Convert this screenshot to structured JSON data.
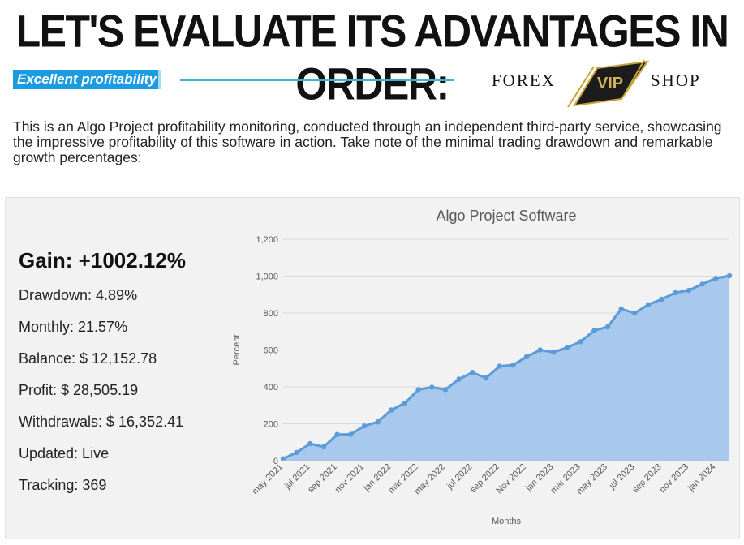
{
  "headline": "LET'S EVALUATE ITS ADVANTAGES IN ORDER:",
  "section_tag": "Excellent profitability",
  "logo": {
    "left": "FOREX",
    "center": "VIP",
    "right": "SHOP"
  },
  "intro": "This is an Algo Project profitability monitoring, conducted through an independent third-party service, showcasing the impressive profitability of this software in action. Take note of the minimal trading drawdown and remarkable growth percentages:",
  "stats": {
    "gain": "Gain: +1002.12%",
    "drawdown": "Drawdown: 4.89%",
    "monthly": "Monthly: 21.57%",
    "balance": "Balance: $ 12,152.78",
    "profit": "Profit: $ 28,505.19",
    "withdrawals": "Withdrawals: $ 16,352.41",
    "updated": "Updated: Live",
    "tracking": "Tracking: 369"
  },
  "colors": {
    "accent": "#1b9be0",
    "line": "#5b9bd8",
    "fill": "#a9c8ee",
    "gold": "#c9a43b"
  },
  "chart_data": {
    "type": "area",
    "title": "Algo Project Software",
    "xlabel": "Months",
    "ylabel": "Percent",
    "ylim": [
      0,
      1200
    ],
    "yticks": [
      "0",
      "200",
      "400",
      "600",
      "800",
      "1,000",
      "1,200"
    ],
    "grid": true,
    "x": [
      "may 2021",
      "jun 2021",
      "jul 2021",
      "aug 2021",
      "sep 2021",
      "oct 2021",
      "nov 2021",
      "dec 2021",
      "jan 2022",
      "feb 2022",
      "mar 2022",
      "apr 2022",
      "may 2022",
      "jun 2022",
      "jul 2022",
      "aug 2022",
      "sep 2022",
      "oct 2022",
      "Nov 2022",
      "dec 2022",
      "jan 2023",
      "feb 2023",
      "mar 2023",
      "apr 2023",
      "may 2023",
      "jun 2023",
      "jul 2023",
      "aug 2023",
      "sep 2023",
      "oct 2023",
      "nov 2023",
      "dec 2023",
      "jan 2024",
      "feb 2024"
    ],
    "x_tick_labels": [
      "may 2021",
      "jul 2021",
      "sep 2021",
      "nov 2021",
      "jan 2022",
      "mar 2022",
      "may 2022",
      "jul 2022",
      "sep 2022",
      "Nov 2022",
      "jan 2023",
      "mar 2023",
      "may 2023",
      "jul 2023",
      "sep 2023",
      "nov 2023",
      "jan 2024"
    ],
    "values": [
      10,
      45,
      92,
      75,
      142,
      143,
      188,
      210,
      275,
      312,
      385,
      398,
      385,
      442,
      478,
      448,
      512,
      518,
      563,
      600,
      588,
      613,
      645,
      705,
      725,
      822,
      800,
      845,
      875,
      910,
      923,
      957,
      988,
      1002
    ]
  }
}
